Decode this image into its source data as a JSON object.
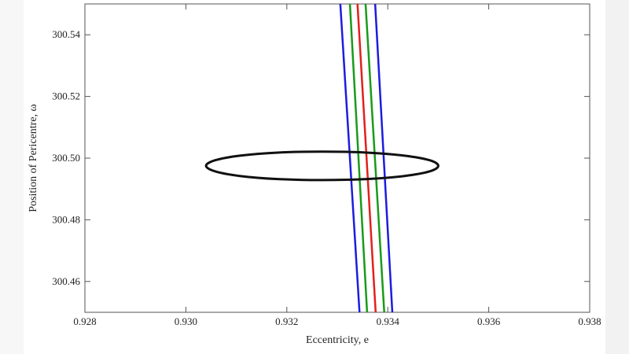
{
  "chart_data": {
    "type": "line",
    "xlabel": "Eccentricity, e",
    "ylabel": "Position of Pericentre, ω",
    "xlim": [
      0.928,
      0.938
    ],
    "ylim": [
      300.45,
      300.55
    ],
    "xticks": [
      0.928,
      {
        "value": 0.93,
        "label": "0.930"
      },
      0.932,
      0.934,
      0.936,
      0.938
    ],
    "yticks": [
      300.46,
      300.48,
      {
        "value": 300.5,
        "label": "300.50"
      },
      300.52,
      300.54
    ],
    "series": [
      {
        "color": "#1c1ce0",
        "x": [
          0.93306,
          0.93344
        ],
        "y": [
          300.55,
          300.45
        ]
      },
      {
        "color": "#1a9a1a",
        "x": [
          0.93325,
          0.93359
        ],
        "y": [
          300.55,
          300.45
        ]
      },
      {
        "color": "#e3201b",
        "x": [
          0.9334,
          0.93376
        ],
        "y": [
          300.55,
          300.45
        ]
      },
      {
        "color": "#1a9a1a",
        "x": [
          0.93356,
          0.93393
        ],
        "y": [
          300.55,
          300.45
        ]
      },
      {
        "color": "#1c1ce0",
        "x": [
          0.93375,
          0.93409
        ],
        "y": [
          300.55,
          300.45
        ]
      },
      {
        "color": "#111111",
        "closed": true,
        "x": [
          0.935,
          0.93483,
          0.93433,
          0.93358,
          0.9327,
          0.93182,
          0.93107,
          0.93058,
          0.9304,
          0.93058,
          0.93107,
          0.93182,
          0.9327,
          0.93358,
          0.93433,
          0.93483
        ],
        "y": [
          300.4975,
          300.4993,
          300.5008,
          300.5018,
          300.5021,
          300.5018,
          300.5008,
          300.4993,
          300.4975,
          300.4957,
          300.4942,
          300.4932,
          300.4929,
          300.4932,
          300.4942,
          300.4957
        ]
      }
    ]
  }
}
